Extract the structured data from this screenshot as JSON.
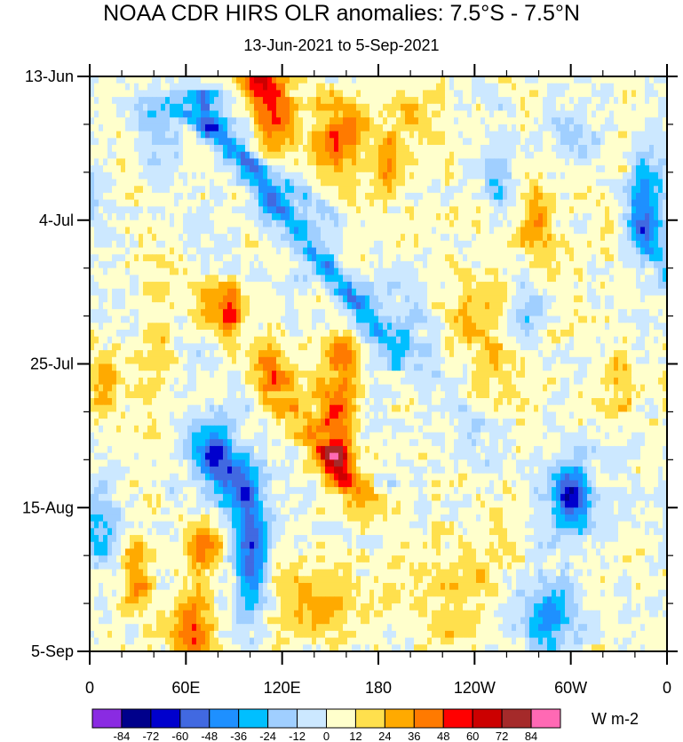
{
  "chart_data": {
    "type": "heatmap",
    "title": "NOAA CDR HIRS OLR anomalies: 7.5°S - 7.5°N",
    "subtitle": "13-Jun-2021 to 5-Sep-2021",
    "x_axis": {
      "label": "",
      "range_deg_east": [
        0,
        360
      ],
      "tick_values_deg_east": [
        0,
        60,
        120,
        180,
        240,
        300,
        360
      ],
      "tick_labels": [
        "0",
        "60E",
        "120E",
        "180",
        "120W",
        "60W",
        "0"
      ]
    },
    "y_axis": {
      "label": "",
      "range_days_since_start": [
        0,
        84
      ],
      "start_date": "13-Jun-2021",
      "end_date": "5-Sep-2021",
      "tick_values_days": [
        0,
        21,
        42,
        63,
        84
      ],
      "tick_labels": [
        "13-Jun",
        "4-Jul",
        "25-Jul",
        "15-Aug",
        "5-Sep"
      ]
    },
    "colorbar": {
      "units": "W m-2",
      "levels": [
        -84,
        -72,
        -60,
        -48,
        -36,
        -24,
        -12,
        0,
        12,
        24,
        36,
        48,
        60,
        72,
        84
      ],
      "level_labels": [
        "-84",
        "-72",
        "-60",
        "-48",
        "-36",
        "-24",
        "-12",
        "0",
        "12",
        "24",
        "36",
        "48",
        "60",
        "72",
        "84"
      ],
      "colors": [
        "#8a2be2",
        "#00008b",
        "#0000cd",
        "#4169e1",
        "#1e90ff",
        "#00bfff",
        "#a0cfff",
        "#cce8ff",
        "#ffffcc",
        "#ffe04d",
        "#ffaa00",
        "#ff7a00",
        "#ff0000",
        "#cc0000",
        "#a52a2a",
        "#ff69b4"
      ]
    },
    "features": [
      {
        "name": "negative anomaly band",
        "type": "propagating_line",
        "lon_start": 70,
        "lon_end": 190,
        "day_start": 5,
        "day_end": 40,
        "value": -55,
        "width_deg": 11
      },
      {
        "name": "negative anomaly band",
        "type": "propagating_line",
        "lon_start": 48,
        "lon_end": 150,
        "day_start": 4,
        "day_end": 20,
        "value": -28,
        "width_deg": 9
      },
      {
        "name": "negative anomaly band",
        "type": "propagating_line",
        "lon_start": 190,
        "lon_end": 245,
        "day_start": 30,
        "day_end": 55,
        "value": -20,
        "width_deg": 15
      },
      {
        "name": "negative anomaly band",
        "type": "propagating_line",
        "lon_start": 300,
        "lon_end": 360,
        "day_start": 8,
        "day_end": 28,
        "value": -30,
        "width_deg": 12
      },
      {
        "name": "negative blob",
        "type": "blob",
        "lon": 78,
        "day": 55,
        "value": -62,
        "r_lon": 13,
        "r_day": 5
      },
      {
        "name": "negative blob",
        "type": "blob",
        "lon": 100,
        "day": 70,
        "value": -58,
        "r_lon": 10,
        "r_day": 9
      },
      {
        "name": "negative blob",
        "type": "blob",
        "lon": 94,
        "day": 60,
        "value": -45,
        "r_lon": 12,
        "r_day": 4
      },
      {
        "name": "negative blob",
        "type": "blob",
        "lon": 300,
        "day": 61,
        "value": -65,
        "r_lon": 12,
        "r_day": 5
      },
      {
        "name": "negative blob",
        "type": "blob",
        "lon": 285,
        "day": 79,
        "value": -42,
        "r_lon": 18,
        "r_day": 6
      },
      {
        "name": "negative blob",
        "type": "blob",
        "lon": 8,
        "day": 66,
        "value": -32,
        "r_lon": 10,
        "r_day": 5
      },
      {
        "name": "negative blob",
        "type": "blob",
        "lon": 348,
        "day": 18,
        "value": -42,
        "r_lon": 10,
        "r_day": 8
      },
      {
        "name": "negative blob",
        "type": "blob",
        "lon": 272,
        "day": 34,
        "value": -30,
        "r_lon": 14,
        "r_day": 5
      },
      {
        "name": "negative blob",
        "type": "blob",
        "lon": 255,
        "day": 15,
        "value": -28,
        "r_lon": 10,
        "r_day": 5
      },
      {
        "name": "negative blob",
        "type": "blob",
        "lon": 40,
        "day": 8,
        "value": -22,
        "r_lon": 10,
        "r_day": 6
      },
      {
        "name": "positive anomaly band",
        "type": "propagating_line",
        "lon_start": 118,
        "lon_end": 170,
        "day_start": 46,
        "day_end": 62,
        "value": 34,
        "width_deg": 14
      },
      {
        "name": "positive blob",
        "type": "blob",
        "lon": 155,
        "day": 56,
        "value": 58,
        "r_lon": 10,
        "r_day": 4
      },
      {
        "name": "positive blob",
        "type": "blob",
        "lon": 155,
        "day": 47,
        "value": 38,
        "r_lon": 14,
        "r_day": 5
      },
      {
        "name": "positive blob",
        "type": "blob",
        "lon": 158,
        "day": 40,
        "value": 34,
        "r_lon": 10,
        "r_day": 3
      },
      {
        "name": "positive blob",
        "type": "blob",
        "lon": 88,
        "day": 34,
        "value": 52,
        "r_lon": 7,
        "r_day": 4
      },
      {
        "name": "positive blob",
        "type": "blob",
        "lon": 73,
        "day": 33,
        "value": 38,
        "r_lon": 8,
        "r_day": 4
      },
      {
        "name": "positive blob",
        "type": "blob",
        "lon": 112,
        "day": 42,
        "value": 32,
        "r_lon": 12,
        "r_day": 4
      },
      {
        "name": "positive blob",
        "type": "blob",
        "lon": 115,
        "day": 5,
        "value": 44,
        "r_lon": 12,
        "r_day": 6
      },
      {
        "name": "positive blob",
        "type": "blob",
        "lon": 105,
        "day": 0,
        "value": 42,
        "r_lon": 14,
        "r_day": 3
      },
      {
        "name": "positive blob",
        "type": "blob",
        "lon": 155,
        "day": 10,
        "value": 40,
        "r_lon": 20,
        "r_day": 6
      },
      {
        "name": "positive blob",
        "type": "blob",
        "lon": 185,
        "day": 13,
        "value": 30,
        "r_lon": 8,
        "r_day": 5
      },
      {
        "name": "positive blob",
        "type": "blob",
        "lon": 205,
        "day": 6,
        "value": 16,
        "r_lon": 20,
        "r_day": 8
      },
      {
        "name": "positive blob",
        "type": "blob",
        "lon": 65,
        "day": 81,
        "value": 42,
        "r_lon": 15,
        "r_day": 5
      },
      {
        "name": "positive blob",
        "type": "blob",
        "lon": 70,
        "day": 69,
        "value": 36,
        "r_lon": 12,
        "r_day": 4
      },
      {
        "name": "positive blob",
        "type": "blob",
        "lon": 140,
        "day": 77,
        "value": 26,
        "r_lon": 25,
        "r_day": 6
      },
      {
        "name": "positive blob",
        "type": "blob",
        "lon": 30,
        "day": 73,
        "value": 32,
        "r_lon": 10,
        "r_day": 5
      },
      {
        "name": "positive blob",
        "type": "blob",
        "lon": 250,
        "day": 38,
        "value": 20,
        "r_lon": 30,
        "r_day": 12
      },
      {
        "name": "positive blob",
        "type": "blob",
        "lon": 280,
        "day": 22,
        "value": 30,
        "r_lon": 12,
        "r_day": 6
      },
      {
        "name": "positive blob",
        "type": "blob",
        "lon": 320,
        "day": 16,
        "value": 22,
        "r_lon": 15,
        "r_day": 5
      },
      {
        "name": "positive blob",
        "type": "blob",
        "lon": 10,
        "day": 45,
        "value": 26,
        "r_lon": 10,
        "r_day": 5
      },
      {
        "name": "positive blob",
        "type": "blob",
        "lon": 230,
        "day": 75,
        "value": 18,
        "r_lon": 35,
        "r_day": 8
      },
      {
        "name": "positive blob",
        "type": "blob",
        "lon": 40,
        "day": 40,
        "value": 14,
        "r_lon": 12,
        "r_day": 12
      },
      {
        "name": "positive blob",
        "type": "blob",
        "lon": 330,
        "day": 45,
        "value": 24,
        "r_lon": 12,
        "r_day": 5
      }
    ]
  }
}
